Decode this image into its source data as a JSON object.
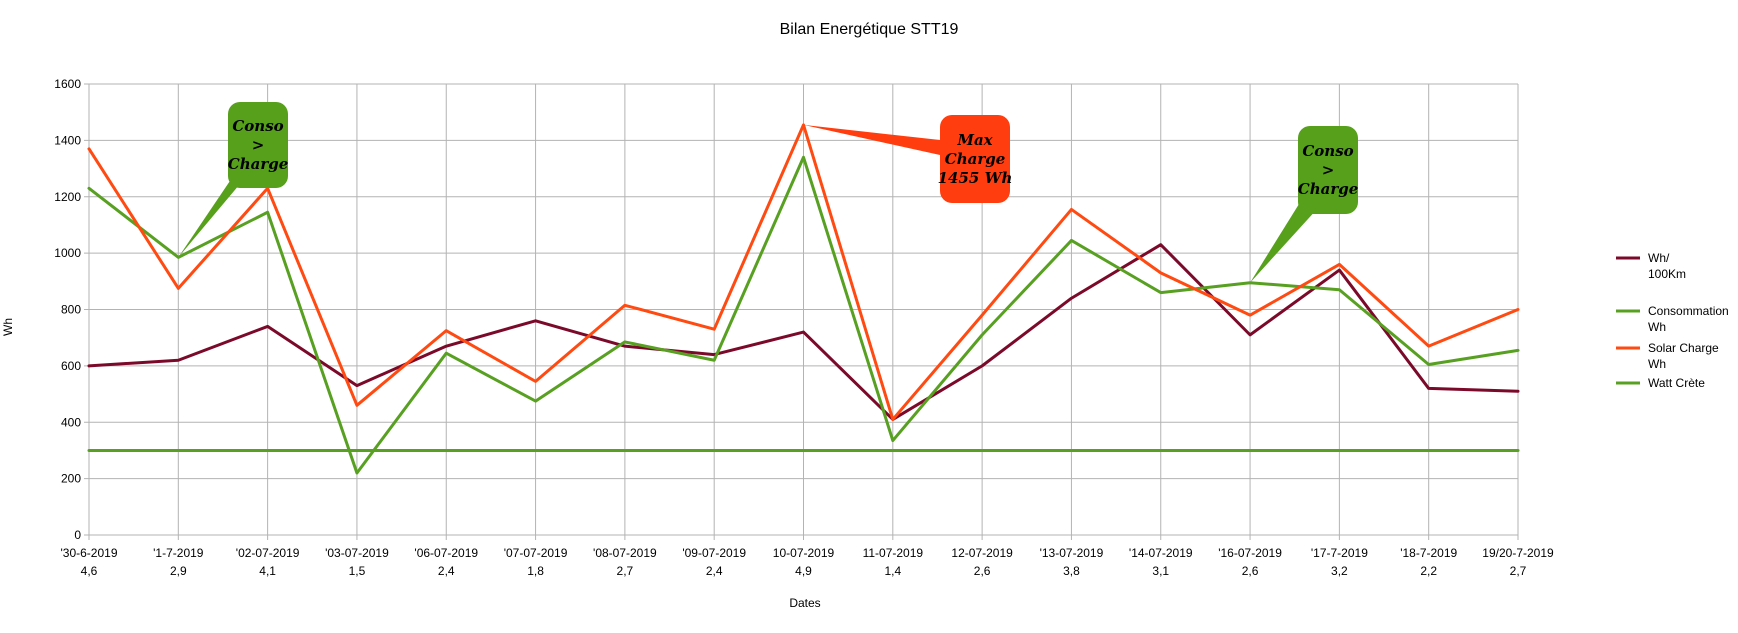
{
  "chart_data": {
    "type": "line",
    "title": "Bilan Energétique STT19",
    "xlabel": "Dates",
    "ylabel": "Wh",
    "ylim": [
      0,
      1600
    ],
    "yticks": [
      0,
      200,
      400,
      600,
      800,
      1000,
      1200,
      1400,
      1600
    ],
    "grid": true,
    "legend_position": "right",
    "categories": [
      [
        "'30-6-2019",
        "4,6"
      ],
      [
        "'1-7-2019",
        "2,9"
      ],
      [
        "'02-07-2019",
        "4,1"
      ],
      [
        "'03-07-2019",
        "1,5"
      ],
      [
        "'06-07-2019",
        "2,4"
      ],
      [
        "'07-07-2019",
        "1,8"
      ],
      [
        "'08-07-2019",
        "2,7"
      ],
      [
        "'09-07-2019",
        "2,4"
      ],
      [
        "10-07-2019",
        "4,9"
      ],
      [
        "11-07-2019",
        "1,4"
      ],
      [
        "12-07-2019",
        "2,6"
      ],
      [
        "'13-07-2019",
        "3,8"
      ],
      [
        "'14-07-2019",
        "3,1"
      ],
      [
        "'16-07-2019",
        "2,6"
      ],
      [
        "'17-7-2019",
        "3,2"
      ],
      [
        "'18-7-2019",
        "2,2"
      ],
      [
        "19/20-7-2019",
        "2,7"
      ]
    ],
    "series": [
      {
        "name": [
          "Wh/",
          "100Km"
        ],
        "color": "#7b0a2a",
        "values": [
          600,
          620,
          740,
          530,
          670,
          760,
          670,
          640,
          720,
          410,
          600,
          840,
          1030,
          710,
          940,
          520,
          510
        ]
      },
      {
        "name": [
          "Consommation",
          "Wh"
        ],
        "color": "#58a021",
        "values": [
          1230,
          985,
          1145,
          220,
          645,
          475,
          685,
          620,
          1340,
          335,
          710,
          1045,
          860,
          895,
          870,
          605,
          655
        ]
      },
      {
        "name": [
          "Solar Charge",
          "Wh"
        ],
        "color": "#ff4a12",
        "values": [
          1370,
          875,
          1230,
          460,
          725,
          545,
          815,
          730,
          1455,
          410,
          780,
          1155,
          930,
          780,
          960,
          670,
          800
        ]
      },
      {
        "name": [
          "Watt Crète"
        ],
        "color": "#58a021",
        "values": [
          300,
          300,
          300,
          300,
          300,
          300,
          300,
          300,
          300,
          300,
          300,
          300,
          300,
          300,
          300,
          300,
          300
        ]
      }
    ],
    "annotations": [
      {
        "lines": [
          "Conso",
          ">",
          "Charge"
        ],
        "color": "#56a01c",
        "target_index": 1,
        "target_value": 985
      },
      {
        "lines": [
          "Max",
          "Charge",
          "1455 Wh"
        ],
        "color": "#ff3d0f",
        "target_index": 8,
        "target_value": 1455
      },
      {
        "lines": [
          "Conso",
          ">",
          "Charge"
        ],
        "color": "#56a01c",
        "target_index": 13,
        "target_value": 895
      }
    ]
  }
}
